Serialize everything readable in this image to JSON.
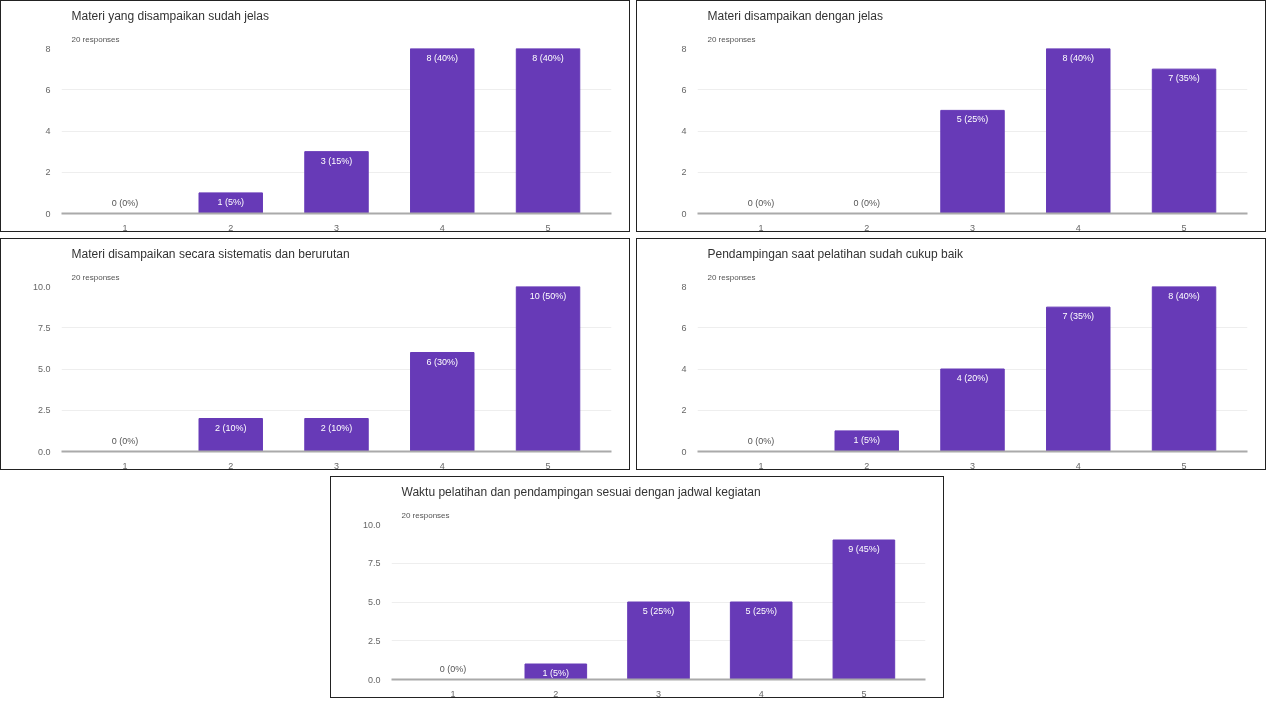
{
  "chart_data": [
    {
      "type": "bar",
      "title": "Materi yang disampaikan sudah jelas",
      "subtitle": "20 responses",
      "categories": [
        "1",
        "2",
        "3",
        "4",
        "5"
      ],
      "values": [
        0,
        1,
        3,
        8,
        8
      ],
      "value_labels": [
        "0 (0%)",
        "1 (5%)",
        "3 (15%)",
        "8 (40%)",
        "8 (40%)"
      ],
      "color": "#673ab7",
      "ylim": [
        0,
        8
      ],
      "yticks": [
        0,
        2,
        4,
        6,
        8
      ],
      "grid": "y"
    },
    {
      "type": "bar",
      "title": "Materi disampaikan dengan jelas",
      "subtitle": "20 responses",
      "categories": [
        "1",
        "2",
        "3",
        "4",
        "5"
      ],
      "values": [
        0,
        0,
        5,
        8,
        7
      ],
      "value_labels": [
        "0 (0%)",
        "0 (0%)",
        "5 (25%)",
        "8 (40%)",
        "7 (35%)"
      ],
      "color": "#673ab7",
      "ylim": [
        0,
        8
      ],
      "yticks": [
        0,
        2,
        4,
        6,
        8
      ],
      "grid": "y"
    },
    {
      "type": "bar",
      "title": "Materi disampaikan secara sistematis dan berurutan",
      "subtitle": "20 responses",
      "categories": [
        "1",
        "2",
        "3",
        "4",
        "5"
      ],
      "values": [
        0,
        2,
        2,
        6,
        10
      ],
      "value_labels": [
        "0 (0%)",
        "2 (10%)",
        "2 (10%)",
        "6 (30%)",
        "10 (50%)"
      ],
      "color": "#673ab7",
      "ylim": [
        0,
        10
      ],
      "yticks": [
        {
          "value": 0,
          "label": "0.0"
        },
        {
          "value": 2.5,
          "label": "2.5"
        },
        {
          "value": 5,
          "label": "5.0"
        },
        {
          "value": 7.5,
          "label": "7.5"
        },
        {
          "value": 10,
          "label": "10.0"
        }
      ],
      "grid": "y"
    },
    {
      "type": "bar",
      "title": "Pendampingan saat pelatihan sudah cukup baik",
      "subtitle": "20 responses",
      "categories": [
        "1",
        "2",
        "3",
        "4",
        "5"
      ],
      "values": [
        0,
        1,
        4,
        7,
        8
      ],
      "value_labels": [
        "0 (0%)",
        "1 (5%)",
        "4 (20%)",
        "7 (35%)",
        "8 (40%)"
      ],
      "color": "#673ab7",
      "ylim": [
        0,
        8
      ],
      "yticks": [
        0,
        2,
        4,
        6,
        8
      ],
      "grid": "y"
    },
    {
      "type": "bar",
      "title": "Waktu pelatihan dan pendampingan sesuai dengan jadwal kegiatan",
      "subtitle": "20 responses",
      "categories": [
        "1",
        "2",
        "3",
        "4",
        "5"
      ],
      "values": [
        0,
        1,
        5,
        5,
        9
      ],
      "value_labels": [
        "0 (0%)",
        "1 (5%)",
        "5 (25%)",
        "5 (25%)",
        "9 (45%)"
      ],
      "color": "#673ab7",
      "ylim": [
        0,
        10
      ],
      "yticks": [
        {
          "value": 0,
          "label": "0.0"
        },
        {
          "value": 2.5,
          "label": "2.5"
        },
        {
          "value": 5,
          "label": "5.0"
        },
        {
          "value": 7.5,
          "label": "7.5"
        },
        {
          "value": 10,
          "label": "10.0"
        }
      ],
      "grid": "y"
    }
  ]
}
